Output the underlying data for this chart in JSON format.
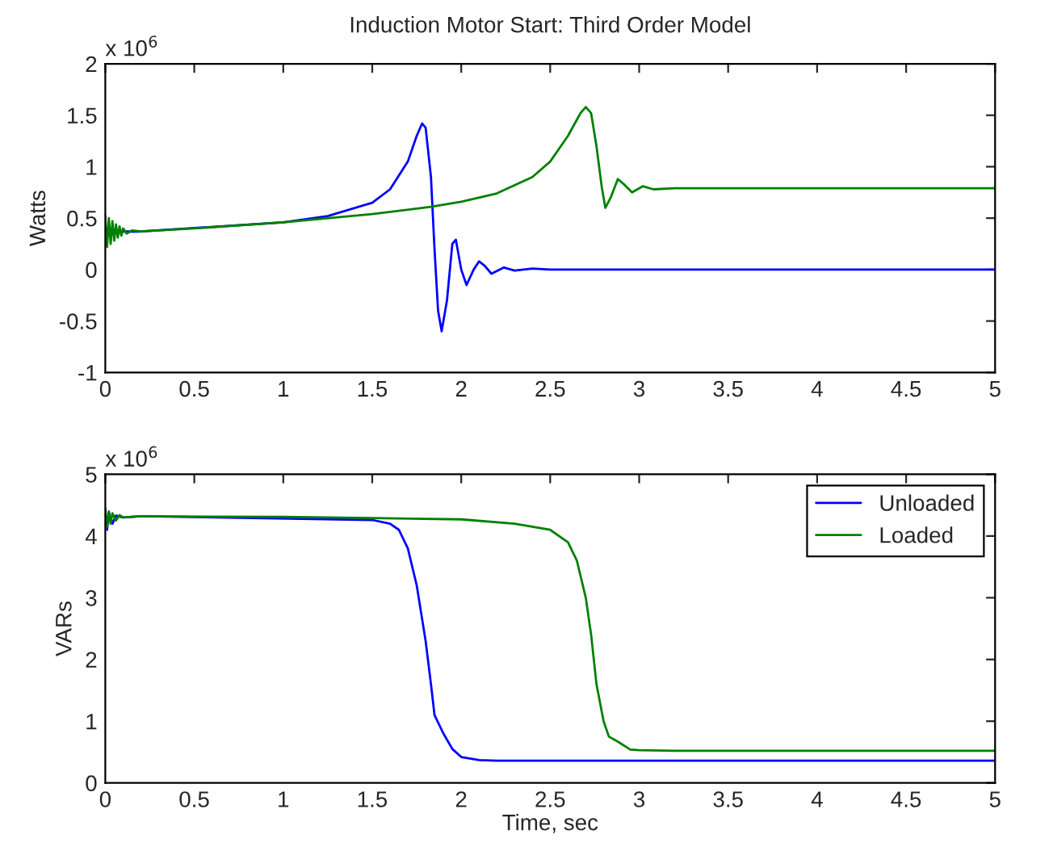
{
  "chart_data": [
    {
      "type": "line",
      "title": "Induction Motor Start: Third Order Model",
      "ylabel": "Watts",
      "annotations": [
        "x 10$^{6}$"
      ],
      "xlim": [
        0,
        5
      ],
      "xticks": [
        0,
        0.5,
        1,
        1.5,
        2,
        2.5,
        3,
        3.5,
        4,
        4.5,
        5
      ],
      "ylim": [
        -1,
        2
      ],
      "yticks": [
        -1,
        -0.5,
        0,
        0.5,
        1,
        1.5,
        2
      ],
      "grid": false,
      "legend": false,
      "series": [
        {
          "color": "#0000ff",
          "x": [
            0.1,
            0.2,
            1.0,
            1.25,
            1.5,
            1.6,
            1.7,
            1.75,
            1.78,
            1.8,
            1.83,
            1.85,
            1.87,
            1.89,
            1.92,
            1.95,
            1.97,
            2.0,
            2.03,
            2.07,
            2.1,
            2.13,
            2.17,
            2.24,
            2.3,
            2.4,
            2.5,
            5
          ],
          "values": [
            0.37,
            0.37,
            0.46,
            0.52,
            0.65,
            0.78,
            1.05,
            1.3,
            1.42,
            1.38,
            0.9,
            0.2,
            -0.4,
            -0.6,
            -0.3,
            0.25,
            0.29,
            0.0,
            -0.15,
            0.0,
            0.08,
            0.04,
            -0.04,
            0.02,
            -0.01,
            0.01,
            0,
            0
          ]
        },
        {
          "color": "#008000",
          "x": [
            0,
            0.01,
            0.02,
            0.03,
            0.04,
            0.05,
            0.06,
            0.07,
            0.08,
            0.09,
            0.1,
            0.12,
            0.15,
            0.2,
            0.5,
            1.0,
            1.5,
            1.83,
            2.0,
            2.2,
            2.4,
            2.5,
            2.6,
            2.67,
            2.7,
            2.73,
            2.76,
            2.79,
            2.81,
            2.84,
            2.88,
            2.92,
            2.96,
            3.02,
            3.08,
            3.2,
            5
          ],
          "values": [
            0.52,
            0.22,
            0.5,
            0.25,
            0.47,
            0.28,
            0.44,
            0.31,
            0.42,
            0.33,
            0.4,
            0.35,
            0.38,
            0.37,
            0.4,
            0.46,
            0.54,
            0.61,
            0.66,
            0.74,
            0.9,
            1.05,
            1.3,
            1.52,
            1.58,
            1.52,
            1.2,
            0.8,
            0.6,
            0.7,
            0.88,
            0.82,
            0.75,
            0.81,
            0.78,
            0.79,
            0.79
          ]
        }
      ]
    },
    {
      "type": "line",
      "xlabel": "Time, sec",
      "ylabel": "VARs",
      "annotations": [
        "x 10$^{6}$"
      ],
      "xlim": [
        0,
        5
      ],
      "xticks": [
        0,
        0.5,
        1,
        1.5,
        2,
        2.5,
        3,
        3.5,
        4,
        4.5,
        5
      ],
      "ylim": [
        0,
        5
      ],
      "yticks": [
        0,
        1,
        2,
        3,
        4,
        5
      ],
      "grid": false,
      "legend": "top right",
      "series": [
        {
          "name": "Unloaded",
          "color": "#0000ff",
          "x": [
            0.01,
            0.02,
            0.04,
            0.06,
            0.1,
            0.2,
            1.5,
            1.6,
            1.65,
            1.7,
            1.75,
            1.8,
            1.83,
            1.85,
            1.9,
            1.95,
            2.0,
            2.1,
            2.2,
            5
          ],
          "values": [
            4.1,
            4.38,
            4.2,
            4.33,
            4.3,
            4.32,
            4.26,
            4.2,
            4.1,
            3.8,
            3.2,
            2.3,
            1.6,
            1.1,
            0.8,
            0.55,
            0.42,
            0.37,
            0.36,
            0.36
          ]
        },
        {
          "name": "Loaded",
          "color": "#008000",
          "x": [
            0,
            0.01,
            0.02,
            0.03,
            0.04,
            0.06,
            0.08,
            0.1,
            0.2,
            1.0,
            1.5,
            2.0,
            2.3,
            2.5,
            2.6,
            2.65,
            2.7,
            2.73,
            2.76,
            2.8,
            2.83,
            2.88,
            2.95,
            3.0,
            3.2,
            5
          ],
          "values": [
            4.45,
            4.15,
            4.4,
            4.2,
            4.37,
            4.25,
            4.34,
            4.3,
            4.32,
            4.31,
            4.29,
            4.27,
            4.2,
            4.1,
            3.9,
            3.6,
            3.0,
            2.4,
            1.6,
            1.0,
            0.75,
            0.67,
            0.54,
            0.53,
            0.52,
            0.52
          ]
        }
      ]
    }
  ]
}
